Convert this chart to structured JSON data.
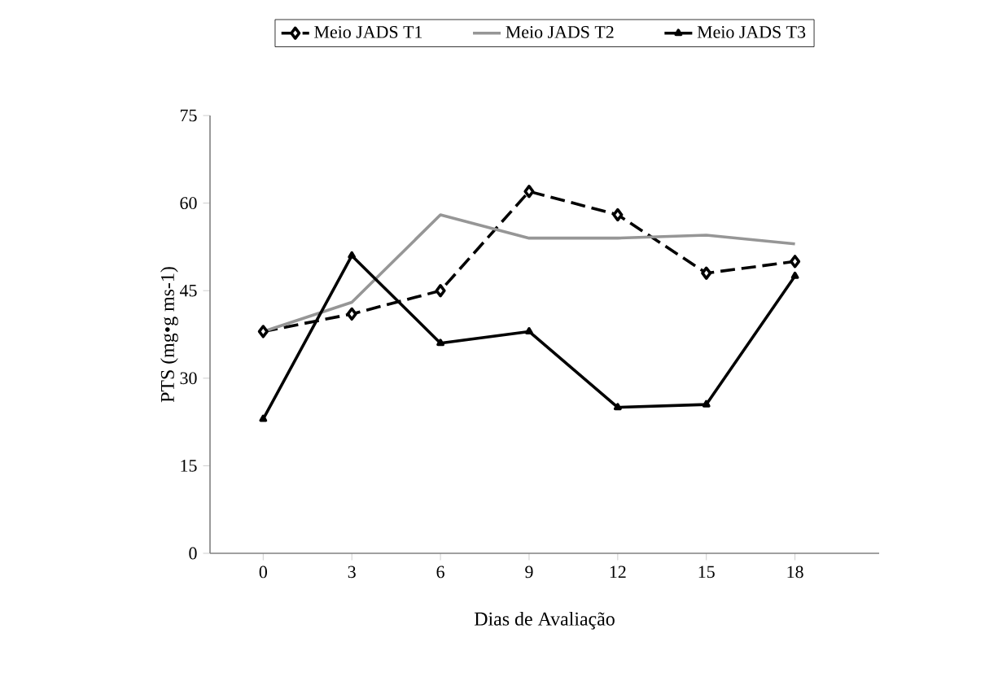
{
  "chart_data": {
    "type": "line",
    "xlabel": "Dias de Avaliação",
    "ylabel": "PTS (mg•g ms-1)",
    "categories": [
      "0",
      "3",
      "6",
      "9",
      "12",
      "15",
      "18"
    ],
    "ylim": [
      0,
      75
    ],
    "yticks": [
      0,
      15,
      30,
      45,
      60,
      75
    ],
    "grid": false,
    "legend": "top",
    "series": [
      {
        "name": "Meio JADS T1",
        "color": "#000000",
        "marker": "diamond",
        "line_style": "dashed",
        "values": [
          38,
          41,
          45,
          62,
          58,
          48,
          50
        ]
      },
      {
        "name": "Meio JADS T2",
        "color": "#969696",
        "marker": "none",
        "line_style": "solid",
        "values": [
          38,
          43,
          58,
          54,
          54,
          54.5,
          53
        ]
      },
      {
        "name": "Meio JADS T3",
        "color": "#000000",
        "marker": "triangle",
        "line_style": "solid",
        "values": [
          23,
          51,
          36,
          38,
          25,
          25.5,
          47.5
        ]
      }
    ]
  }
}
